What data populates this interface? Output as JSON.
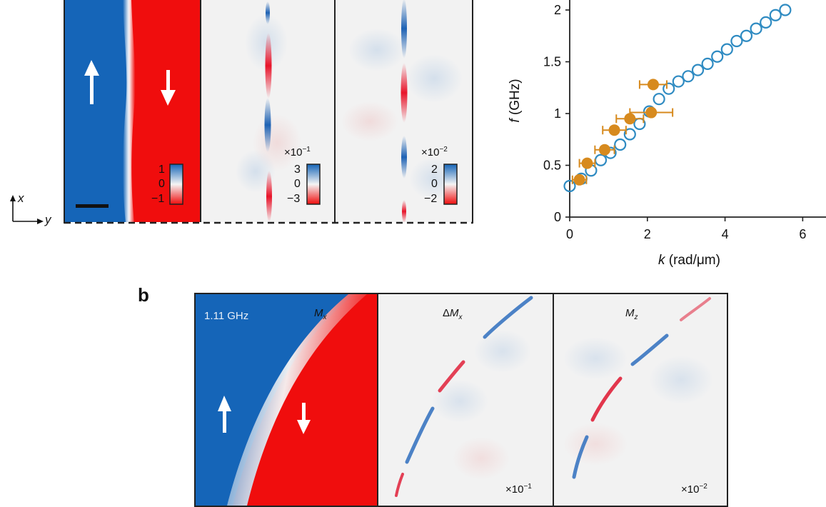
{
  "panel_a": {
    "colorbars": [
      {
        "top": "1",
        "mid": "0",
        "bottom": "−1",
        "mult": ""
      },
      {
        "top": "3",
        "mid": "0",
        "bottom": "−3",
        "mult": "×10",
        "exp": "−1"
      },
      {
        "top": "2",
        "mid": "0",
        "bottom": "−2",
        "mult": "×10",
        "exp": "−2"
      }
    ],
    "axes_x": "x",
    "axes_y": "y"
  },
  "plot": {
    "xlabel_var": "k",
    "xlabel_unit": " (rad/μm)",
    "ylabel_var": "f",
    "ylabel_unit": " (GHz)",
    "xticks": [
      "0",
      "2",
      "4",
      "6"
    ],
    "yticks": [
      "0",
      "0.5",
      "1",
      "1.5",
      "2"
    ],
    "sim_color": "#2f8bc2",
    "exp_color": "#d78a1e"
  },
  "chart_data": {
    "type": "scatter",
    "xlim": [
      0,
      6.6
    ],
    "ylim": [
      0,
      2
    ],
    "series": [
      {
        "marker": "open-circle",
        "x": [
          0.0,
          0.3,
          0.55,
          0.8,
          1.05,
          1.3,
          1.55,
          1.8,
          2.05,
          2.3,
          2.55,
          2.8,
          3.05,
          3.3,
          3.55,
          3.8,
          4.05,
          4.3,
          4.55,
          4.8,
          5.05,
          5.3,
          5.55
        ],
        "y": [
          0.3,
          0.37,
          0.45,
          0.55,
          0.62,
          0.7,
          0.8,
          0.9,
          1.02,
          1.14,
          1.24,
          1.31,
          1.36,
          1.42,
          1.48,
          1.55,
          1.62,
          1.7,
          1.75,
          1.82,
          1.88,
          1.95,
          2.0
        ]
      },
      {
        "marker": "filled-circle",
        "x": [
          0.25,
          0.45,
          0.9,
          1.15,
          1.55,
          2.1,
          2.15
        ],
        "y": [
          0.36,
          0.52,
          0.65,
          0.84,
          0.95,
          1.01,
          1.28
        ],
        "xerr": [
          0.18,
          0.2,
          0.25,
          0.3,
          0.35,
          0.55,
          0.35
        ]
      }
    ]
  },
  "panel_b": {
    "letter": "b",
    "freq": "1.11 GHz",
    "title_mx_var": "M",
    "title_mx_sub": "x",
    "title_dmx_pre": "Δ",
    "title_dmx_var": "M",
    "title_dmx_sub": "x",
    "title_mz_var": "M",
    "title_mz_sub": "z",
    "mult1": "×10",
    "exp1": "−1",
    "mult2": "×10",
    "exp2": "−2"
  }
}
